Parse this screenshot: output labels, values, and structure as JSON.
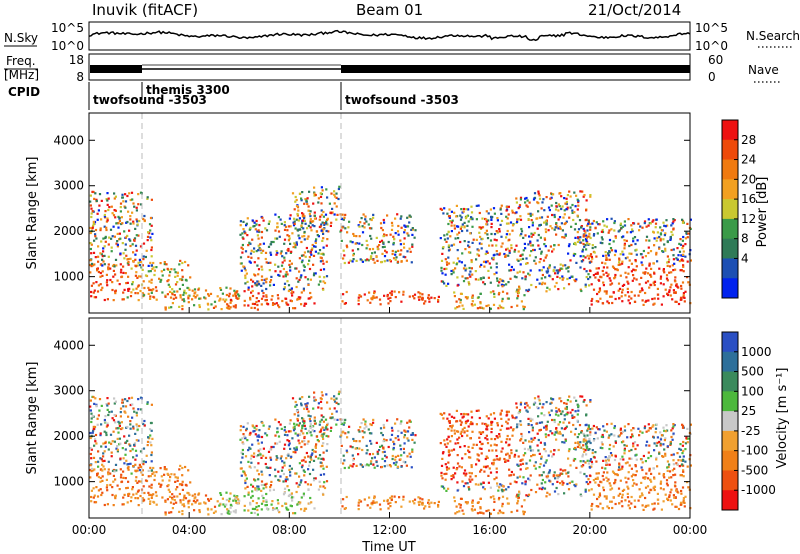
{
  "header": {
    "station": "Inuvik (fitACF)",
    "beam": "Beam 01",
    "date": "21/Oct/2014"
  },
  "top_panels": {
    "nsky_label": "N.Sky",
    "nsearch_label": "N.Search",
    "noise_ticks": [
      "10^5",
      "10^0"
    ],
    "freq_label_1": "Freq.",
    "freq_label_2": "[MHz]",
    "freq_ticks": [
      "18",
      "8"
    ],
    "nave_label": "Nave",
    "nave_ticks": [
      "60",
      "0"
    ],
    "cpid_label": "CPID",
    "cpid_segments": [
      {
        "name": "twofsound -3503",
        "start_hour": 0.0
      },
      {
        "name": "themis 3300",
        "start_hour": 2.0
      },
      {
        "name": "twofsound -3503",
        "start_hour": 10.0
      }
    ]
  },
  "colors": {
    "power_scale": [
      "#0022ee",
      "#1c4fb3",
      "#2f7a57",
      "#3a9a48",
      "#c9c830",
      "#f2a020",
      "#f07a10",
      "#ee4a0a",
      "#ee1111"
    ],
    "velocity_scale": [
      "#2a4fc4",
      "#2d6f9a",
      "#3a8a5c",
      "#4cb83c",
      "#c8c8c8",
      "#f0a030",
      "#f08018",
      "#ee5010",
      "#ee1111"
    ]
  },
  "chart_data": [
    {
      "type": "heatmap",
      "name": "power",
      "ylabel": "Slant Range [km]",
      "ylim": [
        200,
        4600
      ],
      "yticks": [
        "1000",
        "2000",
        "3000",
        "4000"
      ],
      "xlim_hours": [
        0,
        24
      ],
      "colorbar_label": "Power [dB]",
      "colorbar_ticks": [
        "4",
        "8",
        "12",
        "16",
        "20",
        "24",
        "28"
      ]
    },
    {
      "type": "heatmap",
      "name": "velocity",
      "ylabel": "Slant Range [km]",
      "ylim": [
        200,
        4600
      ],
      "yticks": [
        "1000",
        "2000",
        "3000",
        "4000"
      ],
      "xlim_hours": [
        0,
        24
      ],
      "colorbar_label": "Velocity [m s⁻¹]",
      "colorbar_ticks": [
        "1000",
        "500",
        "100",
        "25",
        "-25",
        "-100",
        "-500",
        "-1000"
      ]
    }
  ],
  "x_axis": {
    "ticks": [
      "00:00",
      "04:00",
      "08:00",
      "12:00",
      "16:00",
      "20:00",
      "00:00"
    ],
    "label": "Time UT"
  }
}
